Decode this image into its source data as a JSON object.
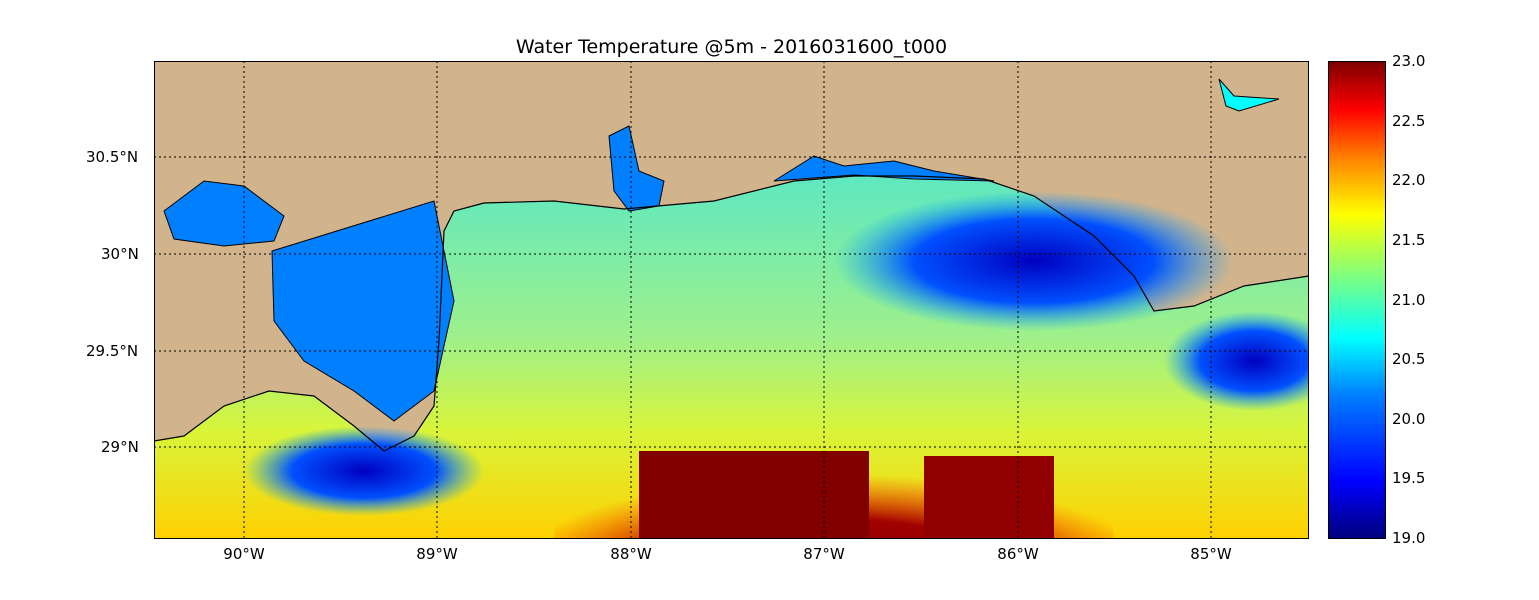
{
  "title": "Water Temperature @5m - 2016031600_t000",
  "x_ticks": [
    "90°W",
    "89°W",
    "88°W",
    "87°W",
    "86°W",
    "85°W"
  ],
  "y_ticks": [
    "30.5°N",
    "30°N",
    "29.5°N",
    "29°N"
  ],
  "colorbar": {
    "ticks": [
      "23.0",
      "22.5",
      "22.0",
      "21.5",
      "21.0",
      "20.5",
      "20.0",
      "19.5",
      "19.0"
    ],
    "colormap": "jet"
  },
  "colors": {
    "land": "#d2b48c",
    "inland_water": "#0080ff",
    "coastline": "#000000"
  },
  "gridlines": true
}
